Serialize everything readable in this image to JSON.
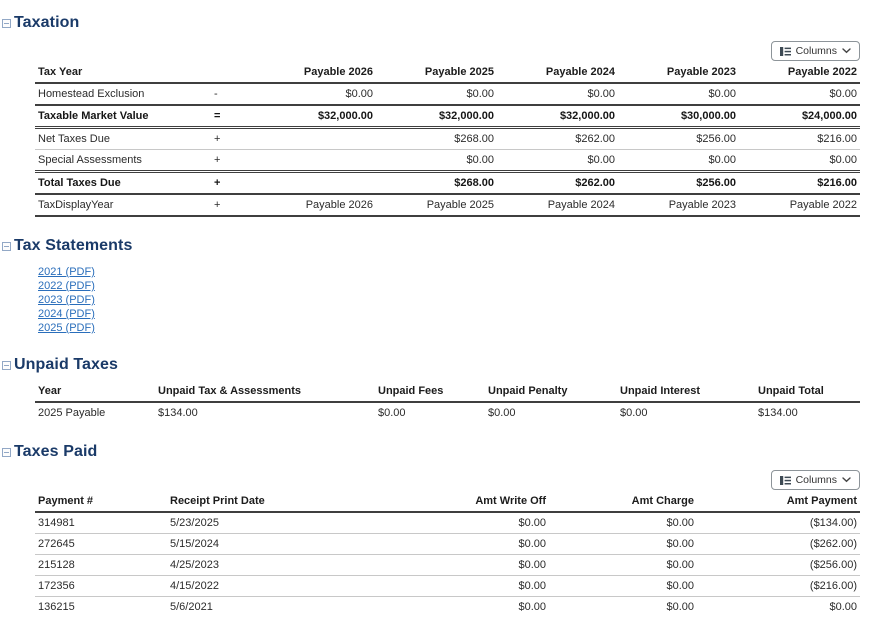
{
  "colors": {
    "section_heading": "#1a3a68",
    "collapse_icon": "#92a8c6",
    "link": "#2a6ebb",
    "table_dark_border": "#3f3f3f",
    "table_light_border": "#c8c8c8"
  },
  "icons": {
    "collapse": "minus-box-icon",
    "columns": "table-columns-icon",
    "chevron": "chevron-down-icon"
  },
  "sections": {
    "taxation": {
      "title": "Taxation",
      "columns_button": {
        "label": "Columns"
      },
      "table": {
        "headers": [
          "Tax Year",
          "",
          "Payable 2026",
          "Payable 2025",
          "Payable 2024",
          "Payable 2023",
          "Payable 2022"
        ],
        "rows": [
          [
            "Homestead Exclusion",
            "-",
            "$0.00",
            "$0.00",
            "$0.00",
            "$0.00",
            "$0.00"
          ],
          [
            "Taxable Market Value",
            "=",
            "$32,000.00",
            "$32,000.00",
            "$32,000.00",
            "$30,000.00",
            "$24,000.00"
          ],
          [
            "Net Taxes Due",
            "+",
            "",
            "$268.00",
            "$262.00",
            "$256.00",
            "$216.00"
          ],
          [
            "Special Assessments",
            "+",
            "",
            "$0.00",
            "$0.00",
            "$0.00",
            "$0.00"
          ],
          [
            "Total Taxes Due",
            "+",
            "",
            "$268.00",
            "$262.00",
            "$256.00",
            "$216.00"
          ],
          [
            "TaxDisplayYear",
            "+",
            "Payable 2026",
            "Payable 2025",
            "Payable 2024",
            "Payable 2023",
            "Payable 2022"
          ]
        ]
      }
    },
    "tax_statements": {
      "title": "Tax Statements",
      "links": [
        "2021 (PDF)",
        "2022 (PDF)",
        "2023 (PDF)",
        "2024 (PDF)",
        "2025 (PDF)"
      ]
    },
    "unpaid_taxes": {
      "title": "Unpaid Taxes",
      "table": {
        "headers": [
          "Year",
          "Unpaid Tax & Assessments",
          "Unpaid Fees",
          "Unpaid Penalty",
          "Unpaid Interest",
          "Unpaid Total"
        ],
        "rows": [
          [
            "2025 Payable",
            "$134.00",
            "$0.00",
            "$0.00",
            "$0.00",
            "$134.00"
          ]
        ]
      }
    },
    "taxes_paid": {
      "title": "Taxes Paid",
      "columns_button": {
        "label": "Columns"
      },
      "table": {
        "headers": [
          "Payment #",
          "Receipt Print Date",
          "Amt Write Off",
          "Amt Charge",
          "Amt Payment"
        ],
        "rows": [
          [
            "314981",
            "5/23/2025",
            "$0.00",
            "$0.00",
            "($134.00)"
          ],
          [
            "272645",
            "5/15/2024",
            "$0.00",
            "$0.00",
            "($262.00)"
          ],
          [
            "215128",
            "4/25/2023",
            "$0.00",
            "$0.00",
            "($256.00)"
          ],
          [
            "172356",
            "4/15/2022",
            "$0.00",
            "$0.00",
            "($216.00)"
          ],
          [
            "136215",
            "5/6/2021",
            "$0.00",
            "$0.00",
            "$0.00"
          ]
        ]
      }
    }
  }
}
